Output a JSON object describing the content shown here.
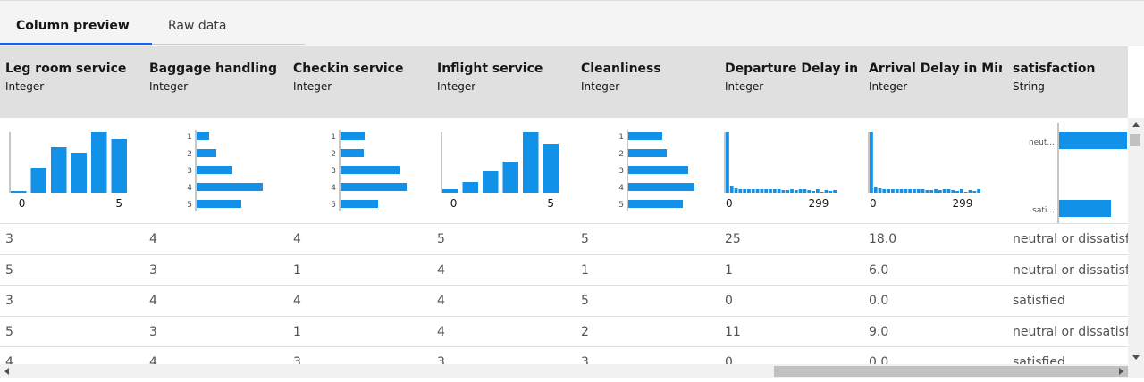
{
  "tabs": [
    "Column preview",
    "Raw data"
  ],
  "active_tab": 0,
  "columns": [
    {
      "name": "Leg room service",
      "type": "Integer",
      "chart": {
        "type": "bar",
        "values": [
          2,
          28,
          51,
          45,
          68,
          60
        ],
        "xticks": [
          0,
          5
        ]
      }
    },
    {
      "name": "Baggage handling",
      "type": "Integer",
      "chart": {
        "type": "barh",
        "categories": [
          "1",
          "2",
          "3",
          "4",
          "5"
        ],
        "values": [
          14,
          22,
          40,
          74,
          50
        ]
      }
    },
    {
      "name": "Checkin service",
      "type": "Integer",
      "chart": {
        "type": "barh",
        "categories": [
          "1",
          "2",
          "3",
          "4",
          "5"
        ],
        "values": [
          27,
          26,
          66,
          74,
          42
        ]
      }
    },
    {
      "name": "Inflight service",
      "type": "Integer",
      "chart": {
        "type": "bar",
        "values": [
          4,
          12,
          24,
          35,
          68,
          55
        ],
        "xticks": [
          0,
          5
        ]
      }
    },
    {
      "name": "Cleanliness",
      "type": "Integer",
      "chart": {
        "type": "barh",
        "categories": [
          "1",
          "2",
          "3",
          "4",
          "5"
        ],
        "values": [
          38,
          43,
          67,
          74,
          61
        ]
      }
    },
    {
      "name": "Departure Delay in M",
      "type": "Integer",
      "chart": {
        "type": "hist",
        "values": [
          68,
          8,
          5,
          4,
          4,
          4,
          4,
          4,
          4,
          4,
          4,
          4,
          4,
          3,
          3,
          4,
          3,
          4,
          4,
          3,
          2,
          4,
          1,
          3,
          2,
          3
        ],
        "xticks": [
          0,
          299
        ]
      }
    },
    {
      "name": "Arrival Delay in Minu",
      "type": "Integer",
      "chart": {
        "type": "hist",
        "values": [
          68,
          7,
          5,
          4,
          4,
          4,
          4,
          4,
          4,
          4,
          4,
          4,
          4,
          3,
          3,
          4,
          3,
          4,
          4,
          3,
          2,
          4,
          1,
          3,
          2,
          4
        ],
        "xticks": [
          0,
          299
        ]
      }
    },
    {
      "name": "satisfaction",
      "type": "String",
      "chart": {
        "type": "cat",
        "categories": [
          "neut...",
          "sati..."
        ],
        "values": [
          76,
          58
        ]
      }
    }
  ],
  "rows": [
    [
      "3",
      "4",
      "4",
      "5",
      "5",
      "25",
      "18.0",
      "neutral or dissatisfie"
    ],
    [
      "5",
      "3",
      "1",
      "4",
      "1",
      "1",
      "6.0",
      "neutral or dissatisfie"
    ],
    [
      "3",
      "4",
      "4",
      "4",
      "5",
      "0",
      "0.0",
      "satisfied"
    ],
    [
      "5",
      "3",
      "1",
      "4",
      "2",
      "11",
      "9.0",
      "neutral or dissatisfie"
    ],
    [
      "4",
      "4",
      "3",
      "3",
      "3",
      "0",
      "0.0",
      "satisfied"
    ]
  ]
}
